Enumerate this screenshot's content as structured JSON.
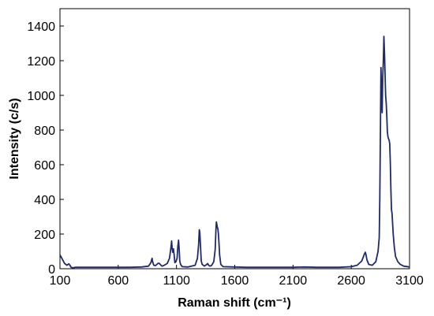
{
  "chart_data": {
    "type": "line",
    "title": "",
    "xlabel": "Raman shift (cm⁻¹)",
    "ylabel": "Intensity (c/s)",
    "xlim": [
      100,
      3100
    ],
    "ylim": [
      0,
      1500
    ],
    "grid": false,
    "legend": "none",
    "x_ticks": [
      100,
      600,
      1100,
      1600,
      2100,
      2600,
      3100
    ],
    "y_ticks": [
      0,
      200,
      400,
      600,
      800,
      1000,
      1200,
      1400
    ],
    "line_color": "#1f2a6b",
    "series": [
      {
        "x": [
          100,
          120,
          140,
          160,
          175,
          185,
          195,
          210,
          230,
          300,
          400,
          500,
          600,
          700,
          800,
          860,
          880,
          890,
          895,
          905,
          920,
          940,
          950,
          960,
          975,
          990,
          1020,
          1040,
          1050,
          1058,
          1062,
          1068,
          1074,
          1080,
          1086,
          1095,
          1105,
          1112,
          1118,
          1123,
          1128,
          1135,
          1150,
          1200,
          1260,
          1280,
          1290,
          1296,
          1300,
          1306,
          1312,
          1320,
          1340,
          1360,
          1368,
          1376,
          1385,
          1400,
          1420,
          1432,
          1438,
          1442,
          1446,
          1450,
          1455,
          1460,
          1465,
          1470,
          1480,
          1500,
          1600,
          1700,
          1800,
          1900,
          2000,
          2100,
          2200,
          2300,
          2400,
          2500,
          2600,
          2650,
          2690,
          2710,
          2720,
          2725,
          2735,
          2750,
          2780,
          2810,
          2830,
          2840,
          2845,
          2850,
          2855,
          2860,
          2865,
          2870,
          2875,
          2880,
          2885,
          2890,
          2895,
          2900,
          2905,
          2910,
          2915,
          2920,
          2925,
          2930,
          2935,
          2940,
          2945,
          2950,
          2960,
          2970,
          2980,
          3000,
          3020,
          3050,
          3100
        ],
        "values": [
          80,
          55,
          30,
          20,
          28,
          20,
          8,
          5,
          8,
          8,
          8,
          8,
          8,
          8,
          10,
          15,
          35,
          60,
          40,
          20,
          18,
          30,
          32,
          25,
          15,
          18,
          30,
          60,
          110,
          160,
          120,
          95,
          115,
          80,
          35,
          40,
          60,
          130,
          165,
          110,
          45,
          25,
          12,
          10,
          20,
          60,
          140,
          225,
          210,
          130,
          45,
          25,
          15,
          25,
          30,
          20,
          15,
          18,
          40,
          110,
          220,
          270,
          255,
          240,
          230,
          200,
          140,
          80,
          25,
          12,
          10,
          8,
          8,
          8,
          8,
          8,
          10,
          8,
          8,
          8,
          12,
          20,
          45,
          80,
          95,
          85,
          50,
          25,
          20,
          40,
          100,
          180,
          400,
          800,
          1160,
          1000,
          900,
          1100,
          1200,
          1340,
          1240,
          1120,
          1000,
          950,
          880,
          790,
          760,
          750,
          740,
          720,
          620,
          450,
          340,
          320,
          200,
          120,
          70,
          40,
          25,
          15,
          10
        ]
      }
    ]
  }
}
